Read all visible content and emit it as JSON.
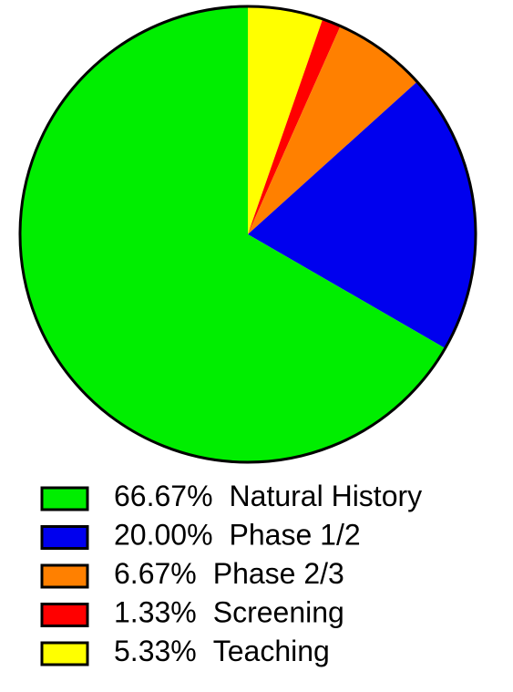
{
  "chart_data": {
    "type": "pie",
    "categories": [
      "Natural History",
      "Phase 1/2",
      "Phase 2/3",
      "Screening",
      "Teaching"
    ],
    "values": [
      66.67,
      20.0,
      6.67,
      1.33,
      5.33
    ],
    "value_labels": [
      "66.67%",
      "20.00%",
      "6.67%",
      "1.33%",
      "5.33%"
    ],
    "colors": [
      "#00ee00",
      "#0000ee",
      "#ff8000",
      "#ff0000",
      "#ffff00"
    ]
  }
}
